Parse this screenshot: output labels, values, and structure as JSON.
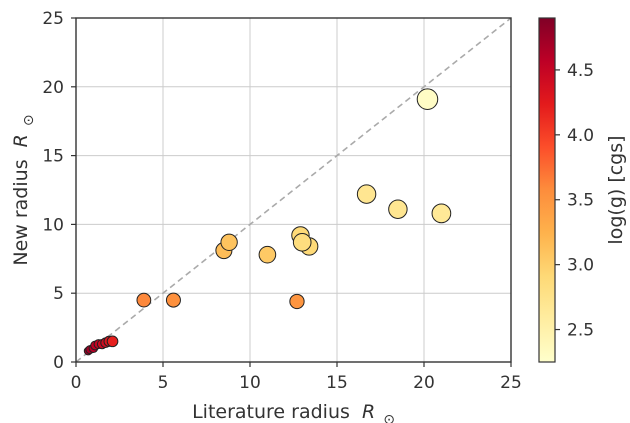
{
  "chart_data": {
    "type": "scatter",
    "xlabel": "Literature radius",
    "xlabel_symbol": "R",
    "xlabel_sub": "⊙",
    "ylabel": "New radius",
    "ylabel_symbol": "R",
    "ylabel_sub": "⊙",
    "xlim": [
      0,
      25
    ],
    "ylim": [
      0,
      25
    ],
    "xticks": [
      0,
      5,
      10,
      15,
      20,
      25
    ],
    "yticks": [
      0,
      5,
      10,
      15,
      20,
      25
    ],
    "grid": true,
    "reference_line": {
      "style": "dashed",
      "from": [
        0,
        0
      ],
      "to": [
        25,
        25
      ]
    },
    "colorbar": {
      "label": "log(g) [cgs]",
      "min": 2.25,
      "max": 4.9,
      "ticks": [
        "2.5",
        "3.0",
        "3.5",
        "4.0",
        "4.5"
      ],
      "colormap": "YlOrRd"
    },
    "points": [
      {
        "x": 0.7,
        "y": 0.8,
        "logg": 4.75
      },
      {
        "x": 0.8,
        "y": 0.9,
        "logg": 4.7
      },
      {
        "x": 1.0,
        "y": 1.0,
        "logg": 4.6
      },
      {
        "x": 1.1,
        "y": 1.2,
        "logg": 4.55
      },
      {
        "x": 1.3,
        "y": 1.3,
        "logg": 4.5
      },
      {
        "x": 1.5,
        "y": 1.3,
        "logg": 4.45
      },
      {
        "x": 1.7,
        "y": 1.4,
        "logg": 4.4
      },
      {
        "x": 1.9,
        "y": 1.5,
        "logg": 4.3
      },
      {
        "x": 2.1,
        "y": 1.5,
        "logg": 4.2
      },
      {
        "x": 3.9,
        "y": 4.5,
        "logg": 3.6
      },
      {
        "x": 5.6,
        "y": 4.5,
        "logg": 3.55
      },
      {
        "x": 12.7,
        "y": 4.4,
        "logg": 3.5
      },
      {
        "x": 8.5,
        "y": 8.1,
        "logg": 3.15
      },
      {
        "x": 8.8,
        "y": 8.7,
        "logg": 3.1
      },
      {
        "x": 11.0,
        "y": 7.8,
        "logg": 3.05
      },
      {
        "x": 12.9,
        "y": 9.2,
        "logg": 2.9
      },
      {
        "x": 13.0,
        "y": 8.7,
        "logg": 2.85
      },
      {
        "x": 13.4,
        "y": 8.4,
        "logg": 2.9
      },
      {
        "x": 16.7,
        "y": 12.2,
        "logg": 2.7
      },
      {
        "x": 18.5,
        "y": 11.1,
        "logg": 2.7
      },
      {
        "x": 21.0,
        "y": 10.8,
        "logg": 2.65
      },
      {
        "x": 20.2,
        "y": 19.1,
        "logg": 2.3
      }
    ]
  }
}
